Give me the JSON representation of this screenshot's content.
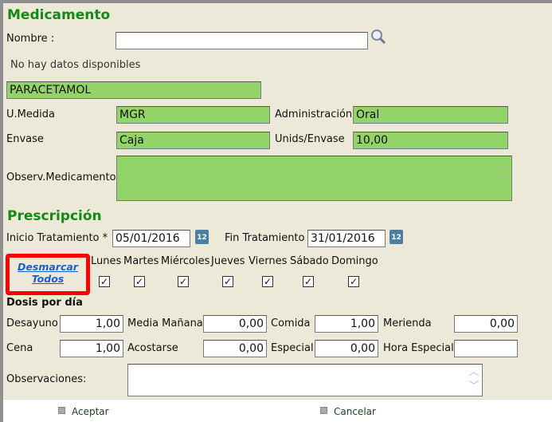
{
  "medicamento": {
    "title": "Medicamento",
    "nombre_label": "Nombre :",
    "nombre_value": "",
    "no_data": "No hay datos disponibles",
    "selected": "PARACETAMOL",
    "umedida_label": "U.Medida",
    "umedida": "MGR",
    "administracion_label": "Administración",
    "administracion": "Oral",
    "envase_label": "Envase",
    "envase": "Caja",
    "unids_label": "Unids/Envase",
    "unids": "10,00",
    "observ_label": "Observ.Medicamento",
    "observ": ""
  },
  "prescripcion": {
    "title": "Prescripción",
    "inicio_label": "Inicio Tratamiento *",
    "inicio": "05/01/2016",
    "fin_label": "Fin Tratamiento",
    "fin": "31/01/2016",
    "calendar_text": "12",
    "desmarcar_1": "Desmarcar",
    "desmarcar_2": "Todos",
    "days": [
      {
        "label": "Lunes",
        "checked": true
      },
      {
        "label": "Martes",
        "checked": true
      },
      {
        "label": "Miércoles",
        "checked": true
      },
      {
        "label": "Jueves",
        "checked": true
      },
      {
        "label": "Viernes",
        "checked": true
      },
      {
        "label": "Sábado",
        "checked": true
      },
      {
        "label": "Domingo",
        "checked": true
      }
    ],
    "dosis_title": "Dosis por día",
    "dosis": [
      {
        "label": "Desayuno",
        "value": "1,00"
      },
      {
        "label": "Media Mañana",
        "value": "0,00"
      },
      {
        "label": "Comida",
        "value": "1,00"
      },
      {
        "label": "Merienda",
        "value": "0,00"
      },
      {
        "label": "Cena",
        "value": "1,00"
      },
      {
        "label": "Acostarse",
        "value": "0,00"
      },
      {
        "label": "Especial",
        "value": "0,00"
      },
      {
        "label": "Hora Especial",
        "value": ""
      }
    ],
    "observaciones_label": "Observaciones:",
    "observaciones": ""
  },
  "footer": {
    "aceptar": "Aceptar",
    "cancelar": "Cancelar"
  },
  "colors": {
    "title": "#138a13",
    "field_filled": "#92D46A",
    "highlight": "#ff0000",
    "link": "#1a5fd6"
  }
}
